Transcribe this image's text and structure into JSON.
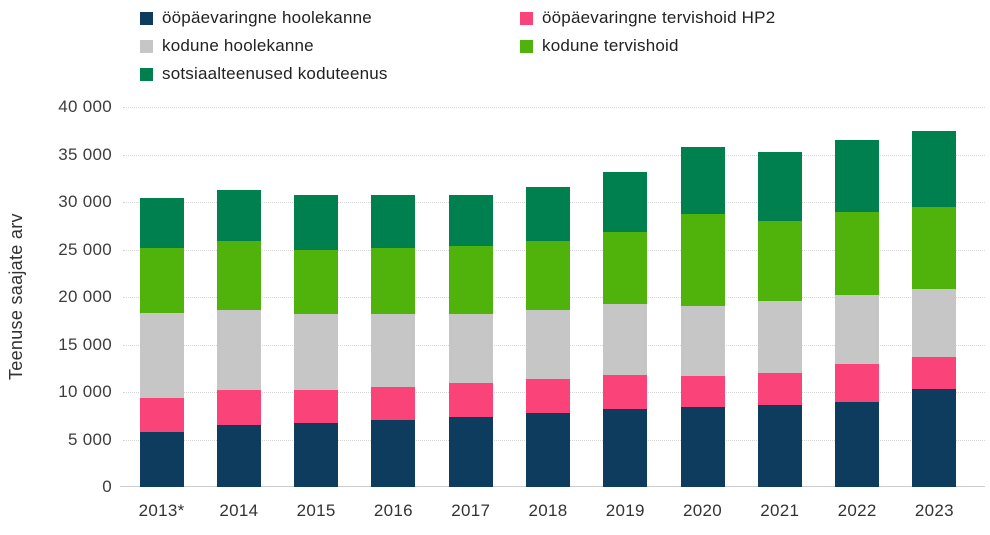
{
  "chart_data": {
    "type": "bar",
    "stacked": true,
    "title": "",
    "xlabel": "",
    "ylabel": "Teenuse saajate arv",
    "ylim": [
      0,
      40000
    ],
    "ytick_step": 5000,
    "ytick_labels": [
      "0",
      "5 000",
      "10 000",
      "15 000",
      "20 000",
      "25 000",
      "30 000",
      "35 000",
      "40 000"
    ],
    "grid": "horizontal-dotted",
    "legend_position": "top",
    "categories": [
      "2013*",
      "2014",
      "2015",
      "2016",
      "2017",
      "2018",
      "2019",
      "2020",
      "2021",
      "2022",
      "2023"
    ],
    "series": [
      {
        "name": "ööpäevaringne hoolekanne",
        "color": "#0d3c5f",
        "values": [
          5800,
          6500,
          6700,
          7100,
          7400,
          7800,
          8200,
          8400,
          8600,
          9000,
          10300
        ]
      },
      {
        "name": "ööpäevaringne tervishoid HP2",
        "color": "#fa4379",
        "values": [
          3600,
          3700,
          3500,
          3400,
          3600,
          3600,
          3600,
          3300,
          3400,
          4000,
          3400
        ]
      },
      {
        "name": "kodune hoolekanne",
        "color": "#c5c6c5",
        "values": [
          8900,
          8400,
          8000,
          7700,
          7200,
          7200,
          7500,
          7400,
          7600,
          7200,
          7100
        ]
      },
      {
        "name": "kodune tervishoid",
        "color": "#4fb30c",
        "values": [
          6900,
          7300,
          6800,
          7000,
          7200,
          7300,
          7500,
          9600,
          8400,
          8700,
          8700
        ]
      },
      {
        "name": "sotsiaalteenused koduteenus",
        "color": "#00804e",
        "values": [
          5200,
          5400,
          5700,
          5500,
          5300,
          5700,
          6400,
          7100,
          7300,
          7600,
          8000
        ]
      }
    ]
  }
}
